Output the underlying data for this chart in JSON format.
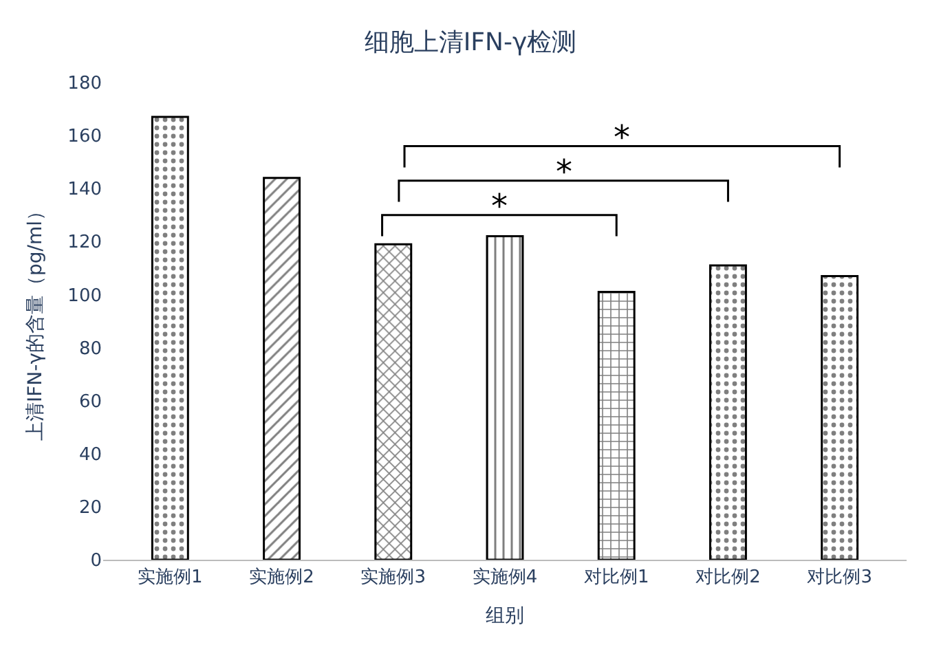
{
  "chart_data": {
    "type": "bar",
    "title": "细胞上清IFN-γ检测",
    "xlabel": "组别",
    "ylabel": "上清IFN-γ的含量（pg/ml）",
    "categories": [
      "实施例1",
      "实施例2",
      "实施例3",
      "实施例4",
      "对比例1",
      "对比例2",
      "对比例3"
    ],
    "values": [
      167,
      144,
      119,
      122,
      101,
      111,
      107
    ],
    "color": "#000000",
    "ylim": [
      0,
      180
    ],
    "yticks": [
      0,
      20,
      40,
      60,
      80,
      100,
      120,
      140,
      160,
      180
    ],
    "legend": false,
    "annotations": [
      "*",
      "*",
      "*"
    ]
  }
}
